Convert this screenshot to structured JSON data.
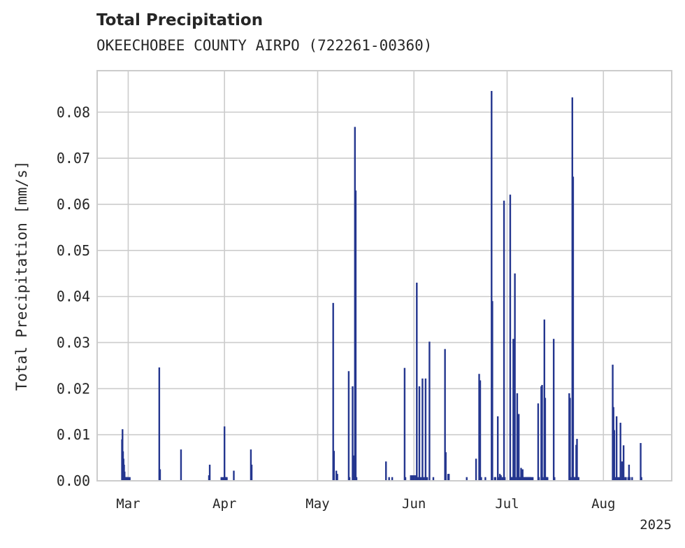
{
  "chart_data": {
    "type": "bar",
    "title": "Total Precipitation",
    "subtitle": "OKEECHOBEE COUNTY AIRPO (722261-00360)",
    "xlabel": "",
    "ylabel": "Total Precipitation [mm/s]",
    "ylim": [
      0,
      0.089
    ],
    "xlim": [
      "2025-02-19",
      "2025-08-23"
    ],
    "yticks": [
      0.0,
      0.01,
      0.02,
      0.03,
      0.04,
      0.05,
      0.06,
      0.07,
      0.08
    ],
    "ytick_labels": [
      "0.00",
      "0.01",
      "0.02",
      "0.03",
      "0.04",
      "0.05",
      "0.06",
      "0.07",
      "0.08"
    ],
    "xticks": [
      "2025-03-01",
      "2025-04-01",
      "2025-05-01",
      "2025-06-01",
      "2025-07-01",
      "2025-08-01"
    ],
    "xtick_labels": [
      "Mar",
      "Apr",
      "May",
      "Jun",
      "Jul",
      "Aug"
    ],
    "x_offset_label": "2025",
    "grid": true,
    "bar_color": "#24368f",
    "x": [
      "2025-02-27T00:00",
      "2025-02-27T04:00",
      "2025-02-27T08:00",
      "2025-02-27T12:00",
      "2025-02-27T16:00",
      "2025-02-27T20:00",
      "2025-02-28T00:00",
      "2025-02-28T06:00",
      "2025-02-28T12:00",
      "2025-02-28T18:00",
      "2025-03-01T00:00",
      "2025-03-01T12:00",
      "2025-03-11T00:00",
      "2025-03-11T06:00",
      "2025-03-18T00:00",
      "2025-03-27T00:00",
      "2025-03-27T06:00",
      "2025-03-31T00:00",
      "2025-03-31T12:00",
      "2025-04-01T00:00",
      "2025-04-01T06:00",
      "2025-04-01T12:00",
      "2025-04-01T18:00",
      "2025-04-04T00:00",
      "2025-04-09T12:00",
      "2025-04-09T18:00",
      "2025-05-06T00:00",
      "2025-05-06T06:00",
      "2025-05-07T00:00",
      "2025-05-07T08:00",
      "2025-05-11T00:00",
      "2025-05-11T06:00",
      "2025-05-12T06:00",
      "2025-05-12T14:00",
      "2025-05-13T00:00",
      "2025-05-13T06:00",
      "2025-05-13T12:00",
      "2025-05-23T00:00",
      "2025-05-24T00:00",
      "2025-05-25T00:00",
      "2025-05-29T00:00",
      "2025-05-29T06:00",
      "2025-05-31T00:00",
      "2025-05-31T12:00",
      "2025-06-01T00:00",
      "2025-06-01T12:00",
      "2025-06-01T22:00",
      "2025-06-02T06:00",
      "2025-06-02T18:00",
      "2025-06-03T06:00",
      "2025-06-03T18:00",
      "2025-06-04T06:00",
      "2025-06-04T18:00",
      "2025-06-05T06:00",
      "2025-06-06T00:00",
      "2025-06-07T06:00",
      "2025-06-11T00:00",
      "2025-06-11T06:00",
      "2025-06-12T00:00",
      "2025-06-12T06:00",
      "2025-06-18T00:00",
      "2025-06-21T00:00",
      "2025-06-22T00:00",
      "2025-06-22T08:00",
      "2025-06-22T16:00",
      "2025-06-24T00:00",
      "2025-06-26T00:00",
      "2025-06-26T06:00",
      "2025-06-27T00:00",
      "2025-06-27T06:00",
      "2025-06-28T00:00",
      "2025-06-28T08:00",
      "2025-06-28T16:00",
      "2025-06-29T00:00",
      "2025-06-29T12:00",
      "2025-06-30T00:00",
      "2025-06-30T06:00",
      "2025-07-02T00:00",
      "2025-07-02T06:00",
      "2025-07-02T12:00",
      "2025-07-02T18:00",
      "2025-07-03T00:00",
      "2025-07-03T06:00",
      "2025-07-03T12:00",
      "2025-07-03T18:00",
      "2025-07-04T06:00",
      "2025-07-04T12:00",
      "2025-07-04T18:00",
      "2025-07-05T00:00",
      "2025-07-05T06:00",
      "2025-07-05T12:00",
      "2025-07-05T18:00",
      "2025-07-06T00:00",
      "2025-07-06T06:00",
      "2025-07-06T12:00",
      "2025-07-06T18:00",
      "2025-07-07T00:00",
      "2025-07-07T06:00",
      "2025-07-07T12:00",
      "2025-07-07T18:00",
      "2025-07-08T00:00",
      "2025-07-08T06:00",
      "2025-07-08T12:00",
      "2025-07-08T18:00",
      "2025-07-09T06:00",
      "2025-07-11T00:00",
      "2025-07-11T06:00",
      "2025-07-12T00:00",
      "2025-07-12T06:00",
      "2025-07-12T12:00",
      "2025-07-13T00:00",
      "2025-07-13T06:00",
      "2025-07-13T12:00",
      "2025-07-13T18:00",
      "2025-07-14T00:00",
      "2025-07-16T00:00",
      "2025-07-16T06:00",
      "2025-07-21T00:00",
      "2025-07-21T06:00",
      "2025-07-21T12:00",
      "2025-07-22T00:00",
      "2025-07-22T06:00",
      "2025-07-22T12:00",
      "2025-07-22T18:00",
      "2025-07-23T00:00",
      "2025-07-23T06:00",
      "2025-07-23T12:00",
      "2025-07-23T18:00",
      "2025-07-24T00:00",
      "2025-08-04T00:00",
      "2025-08-04T06:00",
      "2025-08-04T12:00",
      "2025-08-04T18:00",
      "2025-08-05T06:00",
      "2025-08-05T12:00",
      "2025-08-06T00:00",
      "2025-08-06T12:00",
      "2025-08-07T00:00",
      "2025-08-07T06:00",
      "2025-08-07T12:00",
      "2025-08-08T00:00",
      "2025-08-08T06:00",
      "2025-08-09T00:00",
      "2025-08-09T06:00",
      "2025-08-09T12:00",
      "2025-08-10T06:00",
      "2025-08-13T00:00",
      "2025-08-13T06:00"
    ],
    "values": [
      0.009,
      0.0112,
      0.0064,
      0.0048,
      0.0035,
      0.002,
      0.0008,
      0.0008,
      0.0008,
      0.0008,
      0.0008,
      0.0008,
      0.0246,
      0.0025,
      0.0068,
      0.0012,
      0.0035,
      0.0008,
      0.0008,
      0.0118,
      0.0008,
      0.0008,
      0.0008,
      0.0022,
      0.0068,
      0.0035,
      0.0386,
      0.0065,
      0.0022,
      0.0015,
      0.0238,
      0.0008,
      0.0205,
      0.0055,
      0.0768,
      0.063,
      0.0008,
      0.0042,
      0.0008,
      0.0008,
      0.0245,
      0.0008,
      0.0012,
      0.0012,
      0.0012,
      0.0012,
      0.043,
      0.0008,
      0.0205,
      0.0008,
      0.0222,
      0.0008,
      0.0222,
      0.0008,
      0.0302,
      0.0008,
      0.0286,
      0.0062,
      0.0015,
      0.0015,
      0.0008,
      0.0048,
      0.0232,
      0.0218,
      0.0008,
      0.0008,
      0.0846,
      0.039,
      0.0008,
      0.0008,
      0.014,
      0.0008,
      0.0015,
      0.0012,
      0.0008,
      0.0608,
      0.0008,
      0.0621,
      0.0008,
      0.0008,
      0.0008,
      0.0308,
      0.0008,
      0.045,
      0.0008,
      0.019,
      0.0008,
      0.0145,
      0.0008,
      0.0008,
      0.0028,
      0.0008,
      0.0025,
      0.0008,
      0.0008,
      0.0008,
      0.0008,
      0.0008,
      0.0008,
      0.0008,
      0.0008,
      0.0008,
      0.0008,
      0.0008,
      0.0008,
      0.0168,
      0.0008,
      0.0205,
      0.0208,
      0.0008,
      0.035,
      0.018,
      0.0008,
      0.0008,
      0.0008,
      0.0308,
      0.0008,
      0.019,
      0.018,
      0.0008,
      0.0832,
      0.066,
      0.0008,
      0.0008,
      0.0008,
      0.0078,
      0.0091,
      0.0008,
      0.0008,
      0.0252,
      0.016,
      0.011,
      0.0008,
      0.014,
      0.0008,
      0.0008,
      0.0126,
      0.0042,
      0.0008,
      0.0077,
      0.0008,
      0.0008,
      0.0008,
      0.0035,
      0.0008,
      0.0008,
      0.0082,
      0.0008
    ]
  }
}
